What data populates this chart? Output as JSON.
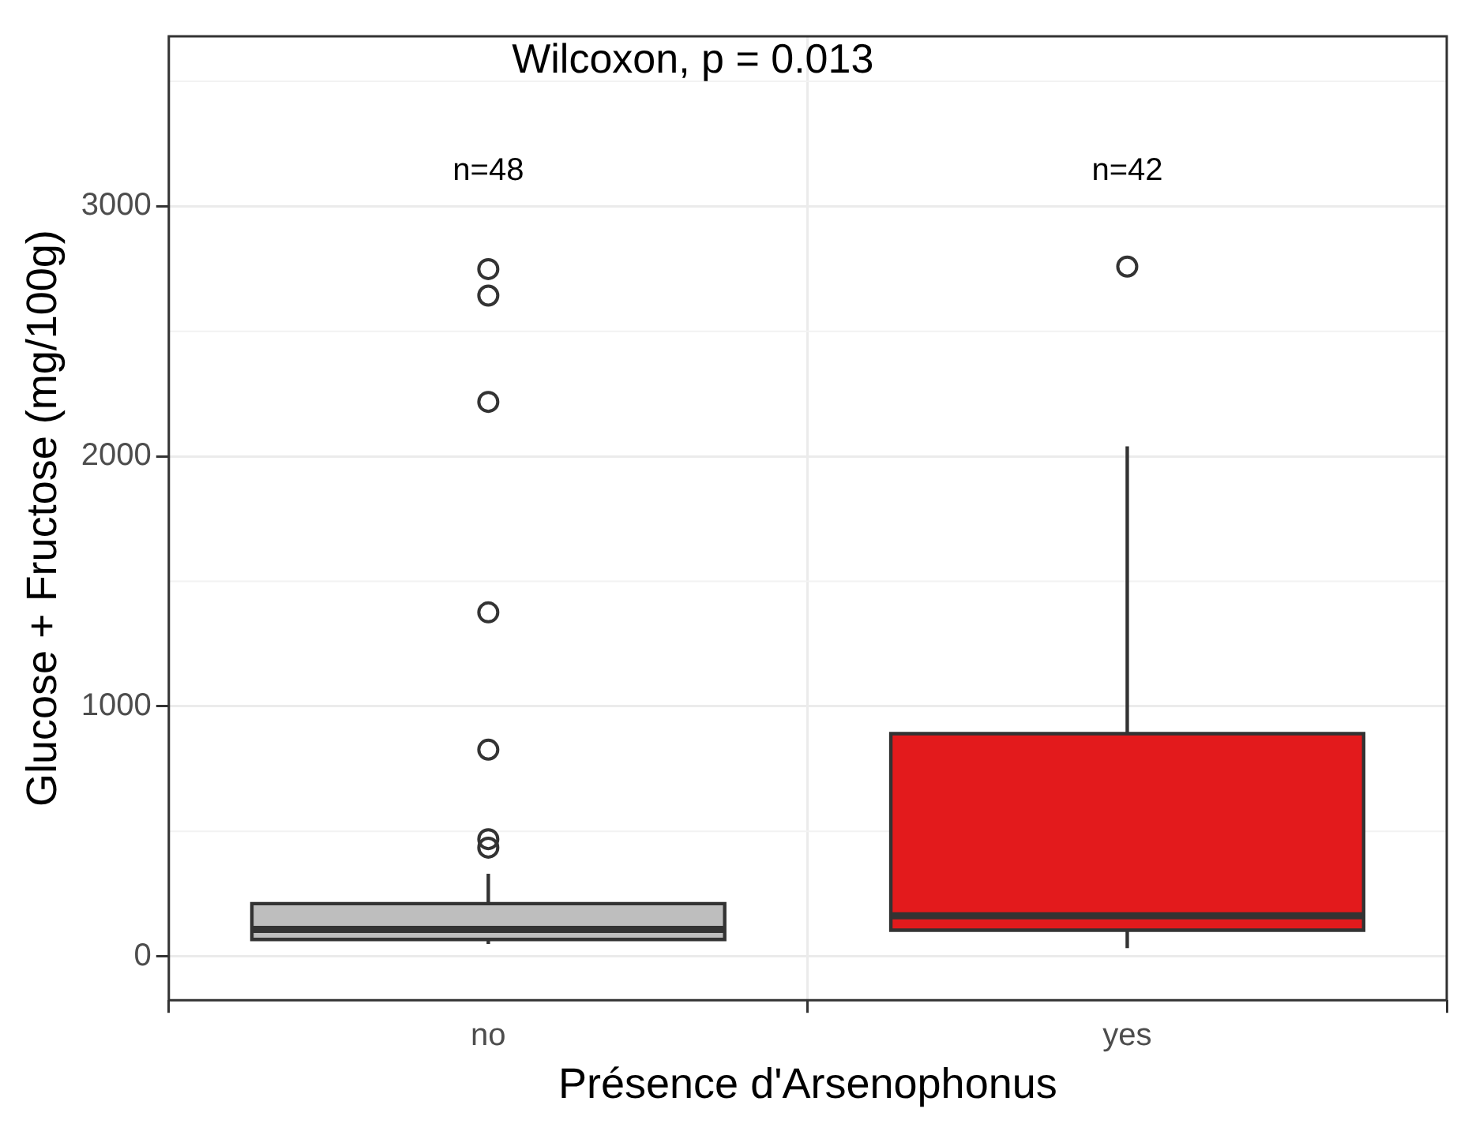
{
  "chart_data": {
    "type": "box",
    "xlabel": "Présence d'Arsenophonus",
    "ylabel": "Glucose + Fructose (mg/100g)",
    "categories": [
      "no",
      "yes"
    ],
    "colors": [
      "#bebebe",
      "#e31a1c"
    ],
    "boxes": [
      {
        "low": 50,
        "q1": 68,
        "median": 108,
        "q3": 211,
        "high": 331,
        "outliers": [
          2749,
          2643,
          2218,
          1376,
          827,
          469,
          435
        ]
      },
      {
        "low": 33,
        "q1": 105,
        "median": 163,
        "q3": 891,
        "high": 2040,
        "outliers": [
          2759
        ]
      }
    ],
    "ylim": [
      -175,
      3680
    ],
    "yticks": [
      0,
      1000,
      2000,
      3000
    ],
    "grid": true,
    "annotations": [
      "Wilcoxon, p = 0.013",
      "n=48",
      "n=42"
    ]
  }
}
